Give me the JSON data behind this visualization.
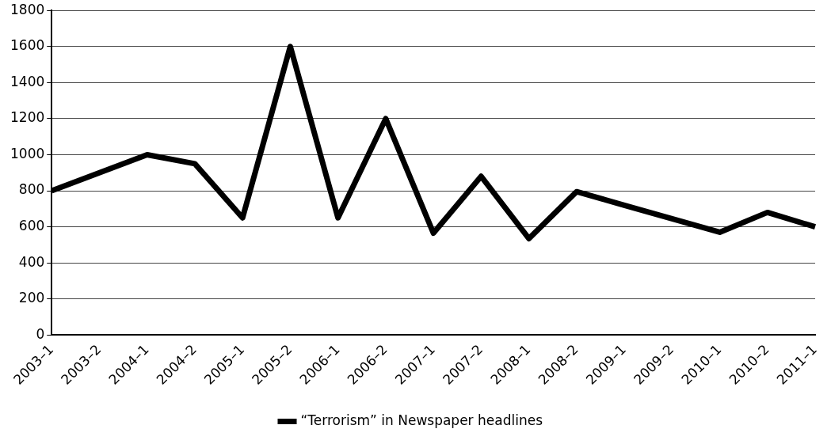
{
  "chart_data": {
    "type": "line",
    "categories": [
      "2003–1",
      "2003–2",
      "2004–1",
      "2004–2",
      "2005–1",
      "2005–2",
      "2006–1",
      "2006–2",
      "2007–1",
      "2007–2",
      "2008–1",
      "2008–2",
      "2009–1",
      "2009–2",
      "2010–1",
      "2010–2",
      "2011–1"
    ],
    "series": [
      {
        "name": "“Terrorism” in Newspaper headlines",
        "color": "#000000",
        "values": [
          800,
          900,
          1000,
          950,
          650,
          1600,
          650,
          1200,
          565,
          880,
          535,
          795,
          720,
          645,
          570,
          680,
          600
        ]
      }
    ],
    "ylim": [
      0,
      1800
    ],
    "yticks": [
      0,
      200,
      400,
      600,
      800,
      1000,
      1200,
      1400,
      1600,
      1800
    ],
    "grid": "y",
    "legend": "bottom",
    "marker": "none",
    "line_style": "solid"
  }
}
